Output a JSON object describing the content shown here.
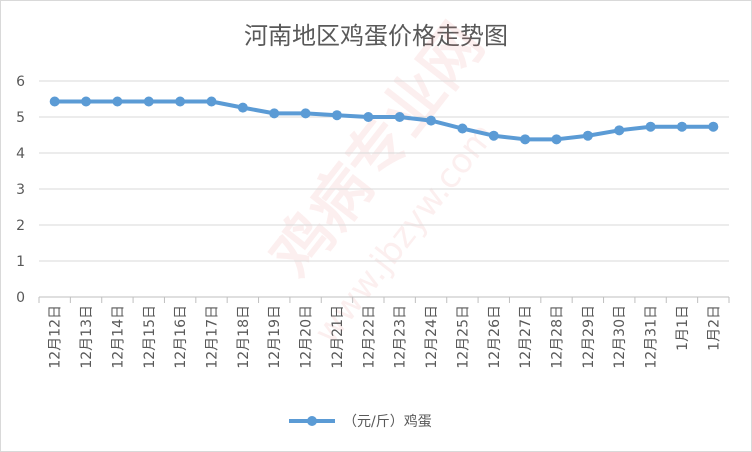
{
  "chart_data": {
    "type": "line",
    "title": "河南地区鸡蛋价格走势图",
    "categories": [
      "12月12日",
      "12月13日",
      "12月14日",
      "12月15日",
      "12月16日",
      "12月17日",
      "12月18日",
      "12月19日",
      "12月20日",
      "12月21日",
      "12月22日",
      "12月23日",
      "12月24日",
      "12月25日",
      "12月26日",
      "12月27日",
      "12月28日",
      "12月29日",
      "12月30日",
      "12月31日",
      "1月1日",
      "1月2日"
    ],
    "series": [
      {
        "name": "（元/斤）鸡蛋",
        "values": [
          5.43,
          5.43,
          5.43,
          5.43,
          5.43,
          5.43,
          5.26,
          5.1,
          5.1,
          5.05,
          5.0,
          5.0,
          4.9,
          4.68,
          4.48,
          4.38,
          4.38,
          4.48,
          4.63,
          4.73,
          4.73,
          4.73
        ]
      }
    ],
    "ylim": [
      0,
      6
    ],
    "yticks": [
      0,
      1,
      2,
      3,
      4,
      5,
      6
    ],
    "grid": true,
    "legend_position": "bottom",
    "line_color": "#5b9bd5",
    "watermark": {
      "main": "鸡病专业网",
      "url": "www.jbzyw.com"
    }
  }
}
